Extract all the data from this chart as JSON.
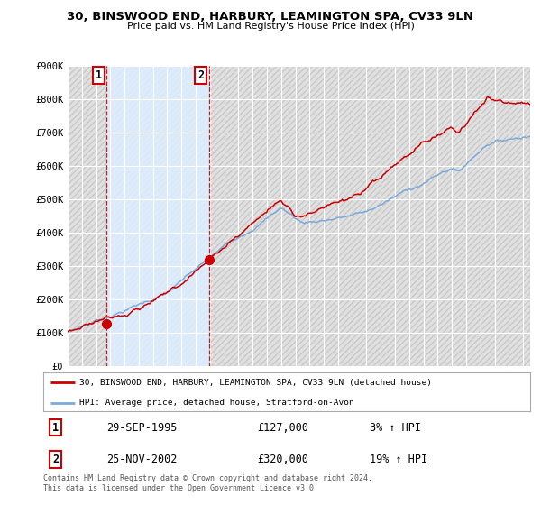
{
  "title": "30, BINSWOOD END, HARBURY, LEAMINGTON SPA, CV33 9LN",
  "subtitle": "Price paid vs. HM Land Registry's House Price Index (HPI)",
  "ylim": [
    0,
    900000
  ],
  "yticks": [
    0,
    100000,
    200000,
    300000,
    400000,
    500000,
    600000,
    700000,
    800000,
    900000
  ],
  "ytick_labels": [
    "£0",
    "£100K",
    "£200K",
    "£300K",
    "£400K",
    "£500K",
    "£600K",
    "£700K",
    "£800K",
    "£900K"
  ],
  "hpi_color": "#7aabdb",
  "price_color": "#cc0000",
  "vline_color": "#cc0000",
  "bg_hatch_color": "#d8d8d8",
  "bg_fill_color": "#ddeeff",
  "sale1_x": 1995.75,
  "sale1_y": 127000,
  "sale2_x": 2002.92,
  "sale2_y": 320000,
  "legend_line1": "30, BINSWOOD END, HARBURY, LEAMINGTON SPA, CV33 9LN (detached house)",
  "legend_line2": "HPI: Average price, detached house, Stratford-on-Avon",
  "table_row1": [
    "1",
    "29-SEP-1995",
    "£127,000",
    "3% ↑ HPI"
  ],
  "table_row2": [
    "2",
    "25-NOV-2002",
    "£320,000",
    "19% ↑ HPI"
  ],
  "footnote": "Contains HM Land Registry data © Crown copyright and database right 2024.\nThis data is licensed under the Open Government Licence v3.0.",
  "xmin": 1993,
  "xmax": 2025.5
}
